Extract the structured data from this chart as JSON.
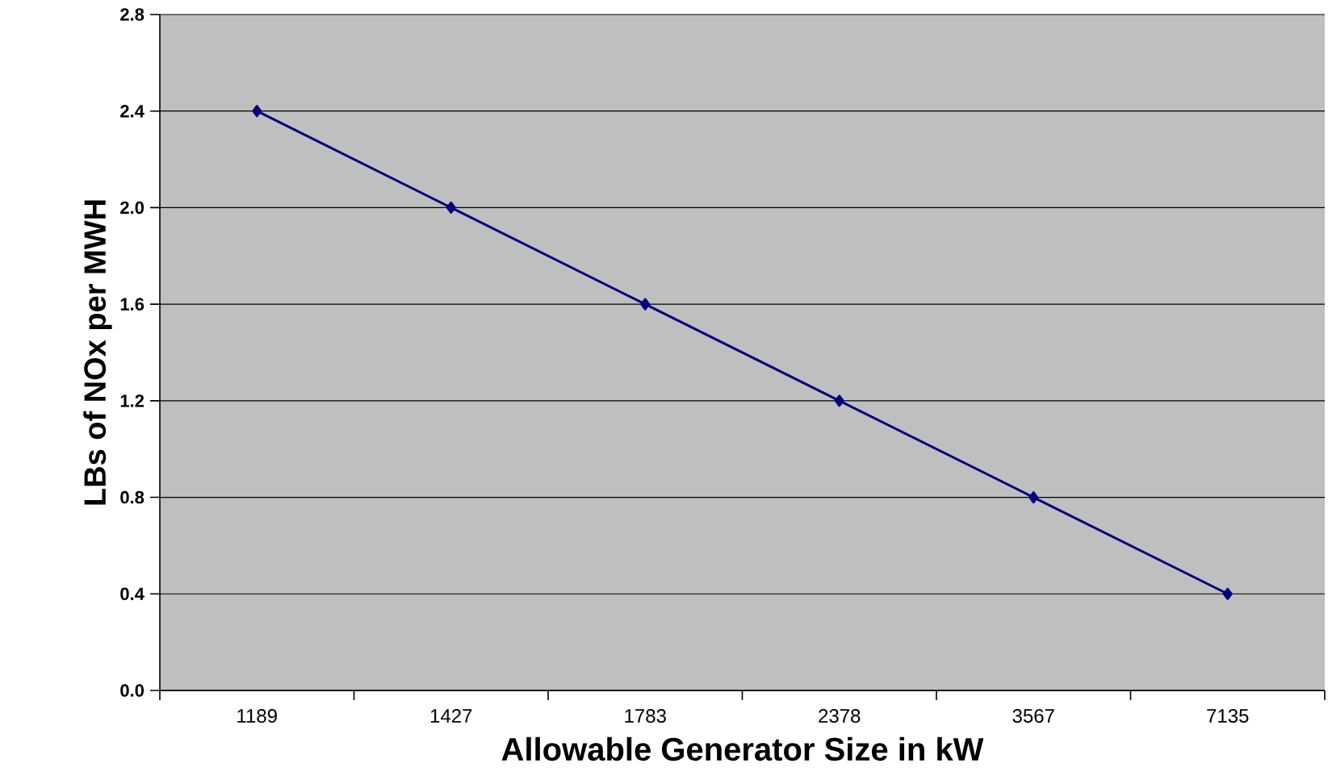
{
  "chart_data": {
    "type": "line",
    "xlabel": "Allowable Generator Size in kW",
    "ylabel": "LBs of NOx per MWH",
    "categories": [
      "1189",
      "1427",
      "1783",
      "2378",
      "3567",
      "7135"
    ],
    "series": [
      {
        "color": "#000080",
        "values": [
          2.4,
          2.0,
          1.6,
          1.2,
          0.8,
          0.4
        ]
      }
    ],
    "ylim": [
      0,
      2.8
    ],
    "yticks": [
      {
        "value": 0,
        "label": "0.0"
      },
      {
        "value": 0.4,
        "label": "0.4"
      },
      {
        "value": 0.8,
        "label": "0.8"
      },
      {
        "value": 1.2,
        "label": "1.2"
      },
      {
        "value": 1.6,
        "label": "1.6"
      },
      {
        "value": 2.0,
        "label": "2.0"
      },
      {
        "value": 2.4,
        "label": "2.4"
      },
      {
        "value": 2.8,
        "label": "2.8"
      }
    ],
    "grid": "y",
    "marker": "diamond",
    "line_style": "solid"
  }
}
